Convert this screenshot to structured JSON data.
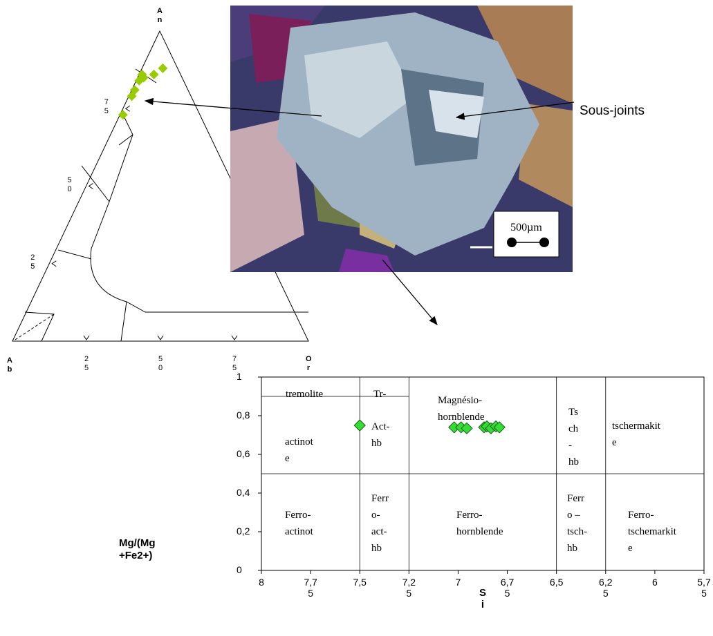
{
  "chart_data": [
    {
      "type": "ternary",
      "vertices": [
        "An",
        "Ab",
        "Or"
      ],
      "an_ticks": [
        25,
        50,
        75
      ],
      "or_ticks": [
        25,
        50,
        75
      ],
      "color": "#99cc00",
      "an": [
        73,
        79,
        81,
        84,
        85,
        86,
        86,
        88
      ],
      "or": [
        1,
        1,
        1,
        1,
        2,
        1,
        5,
        7
      ]
    },
    {
      "type": "scatter",
      "xlabel": "Si",
      "ylabel": "Mg/(Mg +Fe2+)",
      "xlim": [
        8,
        5.75
      ],
      "ylim": [
        0,
        1
      ],
      "xticks": [
        8,
        {
          "value": 7.75,
          "label": "7,75"
        },
        {
          "value": 7.5,
          "label": "7,5"
        },
        {
          "value": 7.25,
          "label": "7,25"
        },
        7,
        {
          "value": 6.75,
          "label": "6,75"
        },
        {
          "value": 6.5,
          "label": "6,5"
        },
        {
          "value": 6.25,
          "label": "6,25"
        },
        6,
        {
          "value": 5.75,
          "label": "5,75"
        }
      ],
      "yticks": [
        0,
        {
          "value": 0.2,
          "label": "0,2"
        },
        {
          "value": 0.4,
          "label": "0,4"
        },
        {
          "value": 0.6,
          "label": "0,6"
        },
        {
          "value": 0.8,
          "label": "0,8"
        },
        1
      ],
      "color": "#33dd33",
      "x": [
        7.5,
        7.02,
        6.985,
        6.956,
        6.868,
        6.854,
        6.833,
        6.808,
        6.79
      ],
      "y": [
        0.75,
        0.74,
        0.74,
        0.735,
        0.74,
        0.745,
        0.735,
        0.745,
        0.74
      ],
      "regions": [
        {
          "lines": [
            "tremolite"
          ]
        },
        {
          "lines": [
            "Tr-"
          ]
        },
        {
          "lines": [
            "actinot",
            "e"
          ]
        },
        {
          "lines": [
            "Act-",
            "hb"
          ]
        },
        {
          "lines": [
            "Magnésio-",
            "hornblende"
          ]
        },
        {
          "lines": [
            "Ts",
            "ch",
            "-",
            "hb"
          ]
        },
        {
          "lines": [
            "tschermakit",
            "e"
          ]
        },
        {
          "lines": [
            "Ferro-",
            "actinot"
          ]
        },
        {
          "lines": [
            "Ferr",
            "o-",
            "act-",
            "hb"
          ]
        },
        {
          "lines": [
            "Ferro-",
            "hornblende"
          ]
        },
        {
          "lines": [
            "Ferr",
            "o –",
            "tsch-",
            "hb"
          ]
        },
        {
          "lines": [
            "Ferro-",
            "tschemarkit",
            "e"
          ]
        }
      ]
    }
  ],
  "photo": {
    "annotation": "Sous-joints",
    "scale_bar": "500µm"
  }
}
